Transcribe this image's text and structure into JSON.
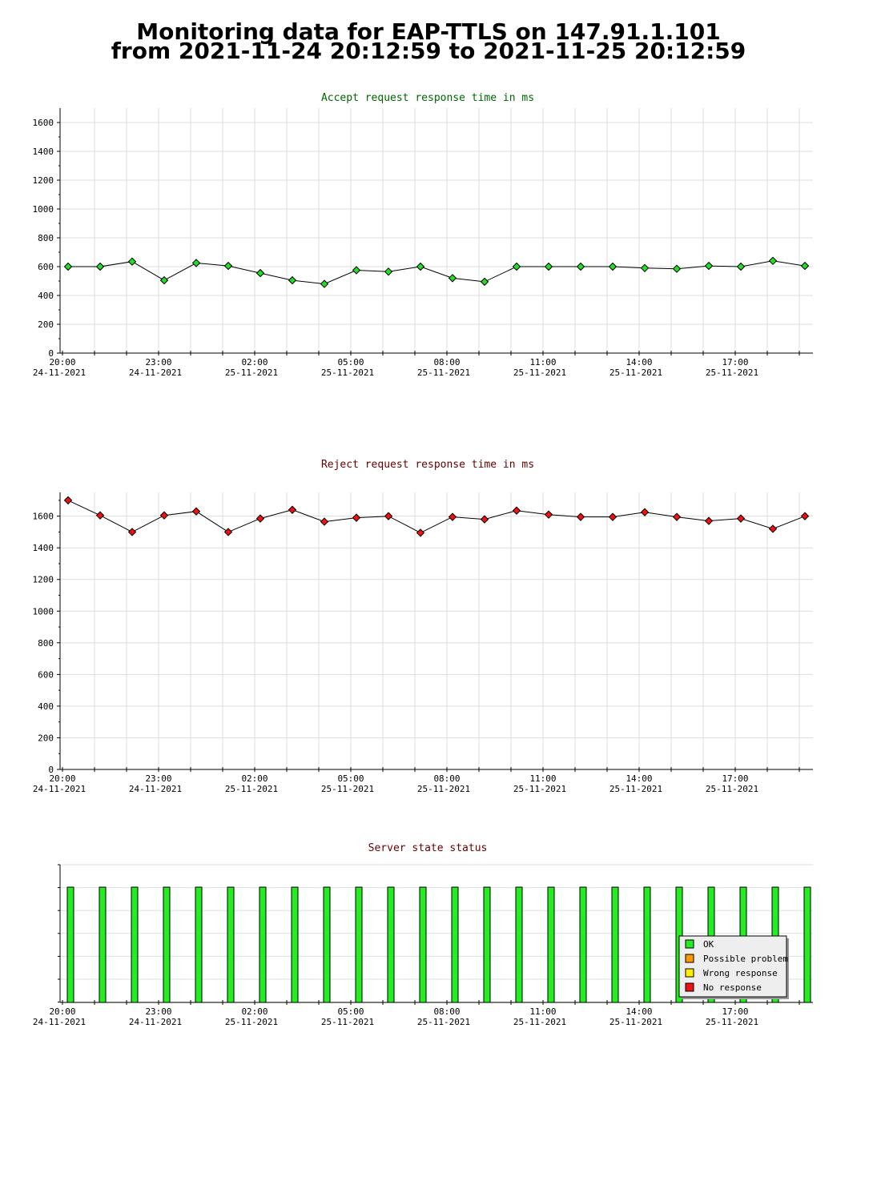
{
  "page": {
    "title_line1": "Monitoring data for EAP-TTLS on 147.91.1.101",
    "title_line2": "from 2021-11-24 20:12:59 to 2021-11-25 20:12:59"
  },
  "colors": {
    "accept_marker": "#22dd22",
    "reject_marker": "#ee1111",
    "ok_bar": "#22ee22",
    "accept_title": "#006600",
    "reject_title": "#660000",
    "status_title": "#660000",
    "grid": "#dddddd"
  },
  "x_ticks": [
    {
      "time": "20:00",
      "date": "24-11-2021"
    },
    {
      "time": "23:00",
      "date": "24-11-2021"
    },
    {
      "time": "02:00",
      "date": "25-11-2021"
    },
    {
      "time": "05:00",
      "date": "25-11-2021"
    },
    {
      "time": "08:00",
      "date": "25-11-2021"
    },
    {
      "time": "11:00",
      "date": "25-11-2021"
    },
    {
      "time": "14:00",
      "date": "25-11-2021"
    },
    {
      "time": "17:00",
      "date": "25-11-2021"
    }
  ],
  "chart_data": [
    {
      "type": "line",
      "title": "Accept request response time in ms",
      "x": [
        "2021-11-24 20:12",
        "2021-11-24 21:12",
        "2021-11-24 22:12",
        "2021-11-24 23:12",
        "2021-11-25 00:12",
        "2021-11-25 01:12",
        "2021-11-25 02:12",
        "2021-11-25 03:12",
        "2021-11-25 04:12",
        "2021-11-25 05:12",
        "2021-11-25 06:12",
        "2021-11-25 07:12",
        "2021-11-25 08:12",
        "2021-11-25 09:12",
        "2021-11-25 10:12",
        "2021-11-25 11:12",
        "2021-11-25 12:12",
        "2021-11-25 13:12",
        "2021-11-25 14:12",
        "2021-11-25 15:12",
        "2021-11-25 16:12",
        "2021-11-25 17:12",
        "2021-11-25 18:12",
        "2021-11-25 19:12"
      ],
      "values": [
        600,
        600,
        635,
        505,
        625,
        605,
        555,
        505,
        480,
        575,
        565,
        600,
        520,
        495,
        600,
        600,
        600,
        600,
        590,
        585,
        605,
        600,
        640,
        605
      ],
      "ylim": [
        0,
        1700
      ],
      "yticks": [
        0,
        200,
        400,
        600,
        800,
        1000,
        1200,
        1400,
        1600
      ],
      "grid": true
    },
    {
      "type": "line",
      "title": "Reject request response time in ms",
      "x": [
        "2021-11-24 20:12",
        "2021-11-24 21:12",
        "2021-11-24 22:12",
        "2021-11-24 23:12",
        "2021-11-25 00:12",
        "2021-11-25 01:12",
        "2021-11-25 02:12",
        "2021-11-25 03:12",
        "2021-11-25 04:12",
        "2021-11-25 05:12",
        "2021-11-25 06:12",
        "2021-11-25 07:12",
        "2021-11-25 08:12",
        "2021-11-25 09:12",
        "2021-11-25 10:12",
        "2021-11-25 11:12",
        "2021-11-25 12:12",
        "2021-11-25 13:12",
        "2021-11-25 14:12",
        "2021-11-25 15:12",
        "2021-11-25 16:12",
        "2021-11-25 17:12",
        "2021-11-25 18:12",
        "2021-11-25 19:12"
      ],
      "values": [
        1700,
        1605,
        1500,
        1605,
        1630,
        1500,
        1585,
        1640,
        1565,
        1590,
        1600,
        1495,
        1595,
        1580,
        1635,
        1610,
        1595,
        1595,
        1625,
        1595,
        1570,
        1585,
        1520,
        1600
      ],
      "ylim": [
        0,
        1750
      ],
      "yticks": [
        0,
        200,
        400,
        600,
        800,
        1000,
        1200,
        1400,
        1600
      ],
      "grid": true
    },
    {
      "type": "bar",
      "title": "Server state status",
      "x": [
        "2021-11-24 20:12",
        "2021-11-24 21:12",
        "2021-11-24 22:12",
        "2021-11-24 23:12",
        "2021-11-25 00:12",
        "2021-11-25 01:12",
        "2021-11-25 02:12",
        "2021-11-25 03:12",
        "2021-11-25 04:12",
        "2021-11-25 05:12",
        "2021-11-25 06:12",
        "2021-11-25 07:12",
        "2021-11-25 08:12",
        "2021-11-25 09:12",
        "2021-11-25 10:12",
        "2021-11-25 11:12",
        "2021-11-25 12:12",
        "2021-11-25 13:12",
        "2021-11-25 14:12",
        "2021-11-25 15:12",
        "2021-11-25 16:12",
        "2021-11-25 17:12",
        "2021-11-25 18:12",
        "2021-11-25 19:12"
      ],
      "status": [
        "OK",
        "OK",
        "OK",
        "OK",
        "OK",
        "OK",
        "OK",
        "OK",
        "OK",
        "OK",
        "OK",
        "OK",
        "OK",
        "OK",
        "OK",
        "OK",
        "OK",
        "OK",
        "OK",
        "OK",
        "OK",
        "OK",
        "OK",
        "OK"
      ],
      "legend": [
        {
          "label": "OK",
          "color": "#22ee22"
        },
        {
          "label": "Possible problem",
          "color": "#ff9900"
        },
        {
          "label": "Wrong response",
          "color": "#ffee00"
        },
        {
          "label": "No response",
          "color": "#ee1111"
        }
      ],
      "legend_position": "bottom-right"
    }
  ]
}
